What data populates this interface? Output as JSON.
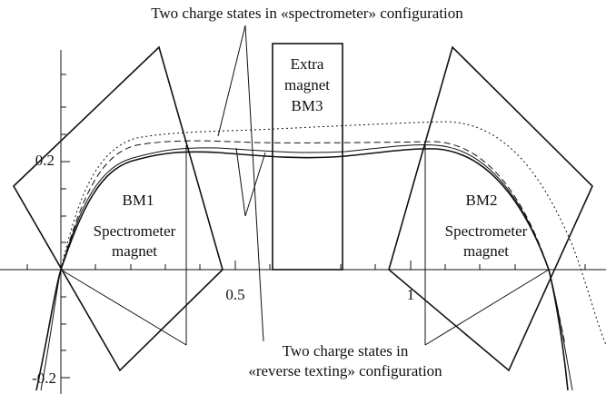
{
  "annotations": {
    "top": "Two charge states in «spectrometer» configuration",
    "bottom": [
      "Two charge states in",
      "«reverse texting» configuration"
    ]
  },
  "magnets": [
    {
      "name": "BM1",
      "lines": [
        "Spectrometer",
        "magnet"
      ]
    },
    {
      "name": "BM2",
      "lines": [
        "Spectrometer",
        "magnet"
      ]
    },
    {
      "lines": [
        "Extra",
        "magnet",
        "BM3"
      ]
    }
  ],
  "axes": {
    "x_ticks": [
      "0.5",
      "1"
    ],
    "y_ticks": [
      "0.2",
      "-0.2"
    ]
  }
}
